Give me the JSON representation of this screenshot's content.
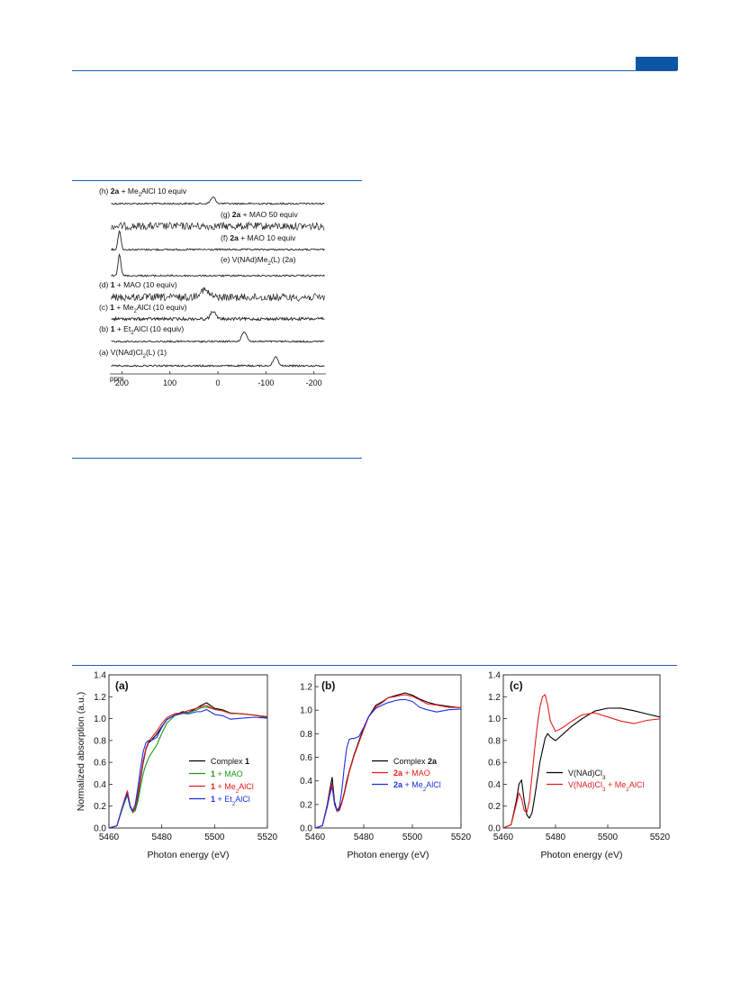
{
  "page": {
    "accent_color": "#0d56a6",
    "rule_color": "#1f5fa8",
    "header_tab": "",
    "nmr_caption": "",
    "xanes_caption": ""
  },
  "nmr_figure": {
    "type": "stacked-spectra",
    "axis_unit": "ppm",
    "x_ticks": [
      "200",
      "100",
      "0",
      "-100",
      "-200"
    ],
    "x_range": [
      225,
      -225
    ],
    "traces": [
      {
        "id": "h",
        "letter": "(h)",
        "compound": "2a",
        "rest": " + Me₂AlCl 10 equiv",
        "peak_ppm": 10,
        "noise": "low"
      },
      {
        "id": "g",
        "letter": "(g)",
        "compound": "2a",
        "rest": " + MAO 50 equiv",
        "peak_ppm": null,
        "noise": "high"
      },
      {
        "id": "f",
        "letter": "(f)",
        "compound": "2a",
        "rest": " + MAO 10 equiv",
        "peak_ppm": 205,
        "noise": "low"
      },
      {
        "id": "e",
        "letter": "(e)",
        "compound": "",
        "rest": "V(NAd)Me₂(L) (2a)",
        "peak_ppm": 205,
        "noise": "low"
      },
      {
        "id": "d",
        "letter": "(d)",
        "compound": "1",
        "rest": " + MAO (10 equiv)",
        "peak_ppm": 30,
        "noise": "high"
      },
      {
        "id": "c",
        "letter": "(c)",
        "compound": "1",
        "rest": " + Me₂AlCl (10 equiv)",
        "peak_ppm": 10,
        "noise": "medium"
      },
      {
        "id": "b",
        "letter": "(b)",
        "compound": "1",
        "rest": " + Et₂AlCl (10 equiv)",
        "peak_ppm": -55,
        "noise": "low"
      },
      {
        "id": "a",
        "letter": "(a)",
        "compound": "",
        "rest": "V(NAd)Cl₂(L) (1)",
        "peak_ppm": -120,
        "noise": "low"
      }
    ]
  },
  "chart_data": [
    {
      "type": "line",
      "panel": "(a)",
      "xlabel": "Photon energy (eV)",
      "ylabel": "Normalized absorption (a.u.)",
      "xlim": [
        5460,
        5520
      ],
      "ylim": [
        0.0,
        1.4
      ],
      "x_ticks": [
        "5460",
        "5480",
        "5500",
        "5520"
      ],
      "y_ticks": [
        "0.0",
        "0.2",
        "0.4",
        "0.6",
        "0.8",
        "1.0",
        "1.2",
        "1.4"
      ],
      "legend": "middle-right",
      "series": [
        {
          "name": "Complex 1",
          "color": "#000000",
          "x": [
            5460,
            5463,
            5465,
            5466,
            5467,
            5468,
            5469,
            5470,
            5471,
            5472,
            5473,
            5474,
            5475,
            5476,
            5478,
            5480,
            5482,
            5485,
            5488,
            5490,
            5493,
            5495,
            5497,
            5500,
            5503,
            5506,
            5510,
            5515,
            5520
          ],
          "y": [
            0.0,
            0.02,
            0.18,
            0.26,
            0.33,
            0.2,
            0.15,
            0.18,
            0.3,
            0.45,
            0.6,
            0.72,
            0.78,
            0.8,
            0.85,
            0.93,
            0.99,
            1.04,
            1.06,
            1.06,
            1.09,
            1.12,
            1.14,
            1.1,
            1.08,
            1.05,
            1.04,
            1.03,
            1.01
          ]
        },
        {
          "name": "1 + MAO",
          "color": "#1a9a1a",
          "x": [
            5460,
            5463,
            5465,
            5466,
            5467,
            5468,
            5469,
            5470,
            5471,
            5472,
            5473,
            5474,
            5475,
            5476,
            5478,
            5480,
            5482,
            5485,
            5488,
            5490,
            5493,
            5495,
            5497,
            5500,
            5503,
            5506,
            5510,
            5515,
            5520
          ],
          "y": [
            0.0,
            0.02,
            0.17,
            0.24,
            0.3,
            0.19,
            0.14,
            0.16,
            0.25,
            0.38,
            0.5,
            0.58,
            0.64,
            0.68,
            0.76,
            0.86,
            0.96,
            1.03,
            1.05,
            1.05,
            1.08,
            1.1,
            1.11,
            1.09,
            1.07,
            1.05,
            1.04,
            1.03,
            1.02
          ]
        },
        {
          "name": "1 + Me₂AlCl",
          "color": "#e81c1c",
          "x": [
            5460,
            5463,
            5465,
            5466,
            5467,
            5468,
            5469,
            5470,
            5471,
            5472,
            5473,
            5474,
            5475,
            5476,
            5478,
            5480,
            5482,
            5485,
            5488,
            5490,
            5493,
            5495,
            5497,
            5500,
            5503,
            5506,
            5510,
            5515,
            5520
          ],
          "y": [
            0.0,
            0.02,
            0.19,
            0.27,
            0.34,
            0.21,
            0.15,
            0.19,
            0.32,
            0.47,
            0.62,
            0.73,
            0.79,
            0.82,
            0.88,
            0.95,
            1.01,
            1.05,
            1.06,
            1.07,
            1.09,
            1.11,
            1.12,
            1.09,
            1.07,
            1.05,
            1.04,
            1.03,
            1.02
          ]
        },
        {
          "name": "1 + Et₂AlCl",
          "color": "#1c2fe8",
          "x": [
            5460,
            5463,
            5465,
            5466,
            5467,
            5468,
            5469,
            5470,
            5471,
            5472,
            5473,
            5474,
            5475,
            5476,
            5478,
            5480,
            5482,
            5485,
            5488,
            5490,
            5493,
            5495,
            5497,
            5500,
            5503,
            5506,
            5510,
            5515,
            5520
          ],
          "y": [
            0.0,
            0.02,
            0.18,
            0.25,
            0.31,
            0.2,
            0.16,
            0.22,
            0.38,
            0.55,
            0.7,
            0.78,
            0.8,
            0.8,
            0.83,
            0.92,
            1.0,
            1.04,
            1.05,
            1.05,
            1.06,
            1.07,
            1.08,
            1.04,
            1.02,
            1.0,
            1.0,
            1.01,
            1.0
          ]
        }
      ]
    },
    {
      "type": "line",
      "panel": "(b)",
      "xlabel": "Photon energy (eV)",
      "ylabel": "",
      "xlim": [
        5460,
        5520
      ],
      "ylim": [
        0.0,
        1.3
      ],
      "x_ticks": [
        "5460",
        "5480",
        "5500",
        "5520"
      ],
      "y_ticks": [
        "0.0",
        "0.2",
        "0.4",
        "0.6",
        "0.8",
        "1.0",
        "1.2"
      ],
      "legend": "middle-right",
      "series": [
        {
          "name": "Complex 2a",
          "color": "#000000",
          "x": [
            5460,
            5463,
            5465,
            5466,
            5467,
            5468,
            5469,
            5470,
            5471,
            5472,
            5473,
            5474,
            5475,
            5476,
            5478,
            5480,
            5482,
            5485,
            5488,
            5490,
            5493,
            5495,
            5497,
            5500,
            5503,
            5506,
            5510,
            5515,
            5520
          ],
          "y": [
            0.0,
            0.02,
            0.2,
            0.32,
            0.43,
            0.22,
            0.15,
            0.16,
            0.22,
            0.3,
            0.4,
            0.48,
            0.55,
            0.62,
            0.74,
            0.85,
            0.95,
            1.04,
            1.08,
            1.11,
            1.13,
            1.14,
            1.15,
            1.13,
            1.1,
            1.07,
            1.05,
            1.03,
            1.02
          ]
        },
        {
          "name": "2a + MAO",
          "color": "#e81c1c",
          "x": [
            5460,
            5463,
            5465,
            5466,
            5467,
            5468,
            5469,
            5470,
            5471,
            5472,
            5473,
            5474,
            5475,
            5476,
            5478,
            5480,
            5482,
            5485,
            5488,
            5490,
            5493,
            5495,
            5497,
            5500,
            5503,
            5506,
            5510,
            5515,
            5520
          ],
          "y": [
            0.0,
            0.02,
            0.19,
            0.3,
            0.38,
            0.2,
            0.14,
            0.15,
            0.21,
            0.29,
            0.38,
            0.47,
            0.54,
            0.61,
            0.73,
            0.84,
            0.94,
            1.03,
            1.07,
            1.1,
            1.12,
            1.13,
            1.13,
            1.12,
            1.09,
            1.06,
            1.04,
            1.03,
            1.02
          ]
        },
        {
          "name": "2a + Me₂AlCl",
          "color": "#1c2fe8",
          "x": [
            5460,
            5463,
            5465,
            5466,
            5467,
            5468,
            5469,
            5470,
            5471,
            5472,
            5473,
            5474,
            5475,
            5476,
            5478,
            5480,
            5482,
            5485,
            5488,
            5490,
            5493,
            5495,
            5497,
            5500,
            5503,
            5506,
            5510,
            5515,
            5520
          ],
          "y": [
            0.0,
            0.02,
            0.18,
            0.28,
            0.35,
            0.2,
            0.15,
            0.18,
            0.32,
            0.52,
            0.68,
            0.75,
            0.76,
            0.76,
            0.78,
            0.85,
            0.94,
            1.02,
            1.05,
            1.06,
            1.08,
            1.09,
            1.09,
            1.07,
            1.03,
            1.0,
            0.99,
            1.0,
            1.01
          ]
        }
      ]
    },
    {
      "type": "line",
      "panel": "(c)",
      "xlabel": "Photon energy (eV)",
      "ylabel": "",
      "xlim": [
        5460,
        5520
      ],
      "ylim": [
        0.0,
        1.4
      ],
      "x_ticks": [
        "5460",
        "5480",
        "5500",
        "5520"
      ],
      "y_ticks": [
        "0.0",
        "0.2",
        "0.4",
        "0.6",
        "0.8",
        "1.0",
        "1.2",
        "1.4"
      ],
      "legend": "middle-right",
      "series": [
        {
          "name": "V(NAd)Cl₃",
          "color": "#000000",
          "x": [
            5460,
            5463,
            5465,
            5466,
            5467,
            5468,
            5469,
            5470,
            5471,
            5472,
            5474,
            5476,
            5477,
            5478,
            5480,
            5483,
            5486,
            5490,
            5495,
            5500,
            5505,
            5510,
            5515,
            5520
          ],
          "y": [
            0.0,
            0.03,
            0.25,
            0.4,
            0.44,
            0.25,
            0.12,
            0.09,
            0.14,
            0.28,
            0.6,
            0.82,
            0.86,
            0.84,
            0.8,
            0.86,
            0.93,
            1.0,
            1.07,
            1.1,
            1.09,
            1.07,
            1.04,
            1.01
          ]
        },
        {
          "name": "V(NAd)Cl₃ + Me₂AlCl",
          "color": "#e81c1c",
          "x": [
            5460,
            5463,
            5465,
            5466,
            5467,
            5468,
            5469,
            5470,
            5471,
            5472,
            5473,
            5474,
            5475,
            5476,
            5477,
            5478,
            5480,
            5483,
            5486,
            5490,
            5495,
            5500,
            5505,
            5510,
            5515,
            5520
          ],
          "y": [
            0.0,
            0.03,
            0.22,
            0.32,
            0.27,
            0.16,
            0.14,
            0.25,
            0.48,
            0.72,
            0.93,
            1.1,
            1.2,
            1.22,
            1.12,
            0.98,
            0.88,
            0.92,
            0.97,
            1.03,
            1.05,
            1.01,
            0.98,
            0.96,
            0.98,
            1.0
          ]
        }
      ]
    }
  ]
}
